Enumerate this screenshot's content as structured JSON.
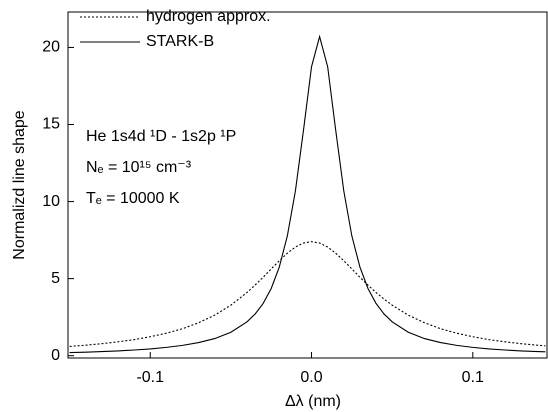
{
  "chart_data": {
    "type": "line",
    "xlabel": "Δλ (nm)",
    "ylabel": "Normalizd line shape",
    "annotations": [
      "He 1s4d ¹D - 1s2p ¹P",
      "Nₑ = 10¹⁵ cm⁻³",
      "Tₑ = 10000 K"
    ],
    "x": [
      -0.15,
      -0.14,
      -0.13,
      -0.12,
      -0.11,
      -0.1,
      -0.09,
      -0.08,
      -0.07,
      -0.06,
      -0.05,
      -0.04,
      -0.035,
      -0.03,
      -0.025,
      -0.02,
      -0.015,
      -0.01,
      -0.005,
      0,
      0.005,
      0.01,
      0.015,
      0.02,
      0.025,
      0.03,
      0.035,
      0.04,
      0.045,
      0.05,
      0.06,
      0.07,
      0.08,
      0.09,
      0.1,
      0.11,
      0.12,
      0.13,
      0.14,
      0.145
    ],
    "series": [
      {
        "name": "hydrogen approx.",
        "color": "#000000",
        "dash": "dotted",
        "values": [
          0.6,
          0.68,
          0.78,
          0.9,
          1.04,
          1.23,
          1.46,
          1.75,
          2.14,
          2.63,
          3.28,
          4.1,
          4.58,
          5.09,
          5.63,
          6.16,
          6.65,
          7.05,
          7.31,
          7.4,
          7.31,
          7.05,
          6.65,
          6.16,
          5.63,
          5.09,
          4.58,
          4.1,
          3.67,
          3.28,
          2.63,
          2.14,
          1.75,
          1.46,
          1.23,
          1.04,
          0.9,
          0.78,
          0.68,
          0.64
        ]
      },
      {
        "name": "STARK-B",
        "color": "#000000",
        "dash": "solid",
        "values": [
          0.2,
          0.23,
          0.27,
          0.31,
          0.37,
          0.44,
          0.54,
          0.67,
          0.85,
          1.11,
          1.52,
          2.2,
          2.7,
          3.39,
          4.36,
          5.75,
          7.77,
          10.69,
          14.62,
          18.75,
          20.7,
          18.75,
          14.62,
          10.69,
          7.77,
          5.75,
          4.36,
          3.39,
          2.7,
          2.2,
          1.52,
          1.11,
          0.85,
          0.67,
          0.54,
          0.44,
          0.37,
          0.31,
          0.27,
          0.25
        ]
      }
    ],
    "xlim": [
      -0.151,
      0.146
    ],
    "ylim": [
      -0.15,
      22.3
    ],
    "xticks": [
      -0.1,
      {
        "value": 0,
        "label": "0.0"
      },
      0.1
    ],
    "yticks": [
      0,
      5,
      10,
      15,
      20
    ],
    "legend": "upper left"
  }
}
